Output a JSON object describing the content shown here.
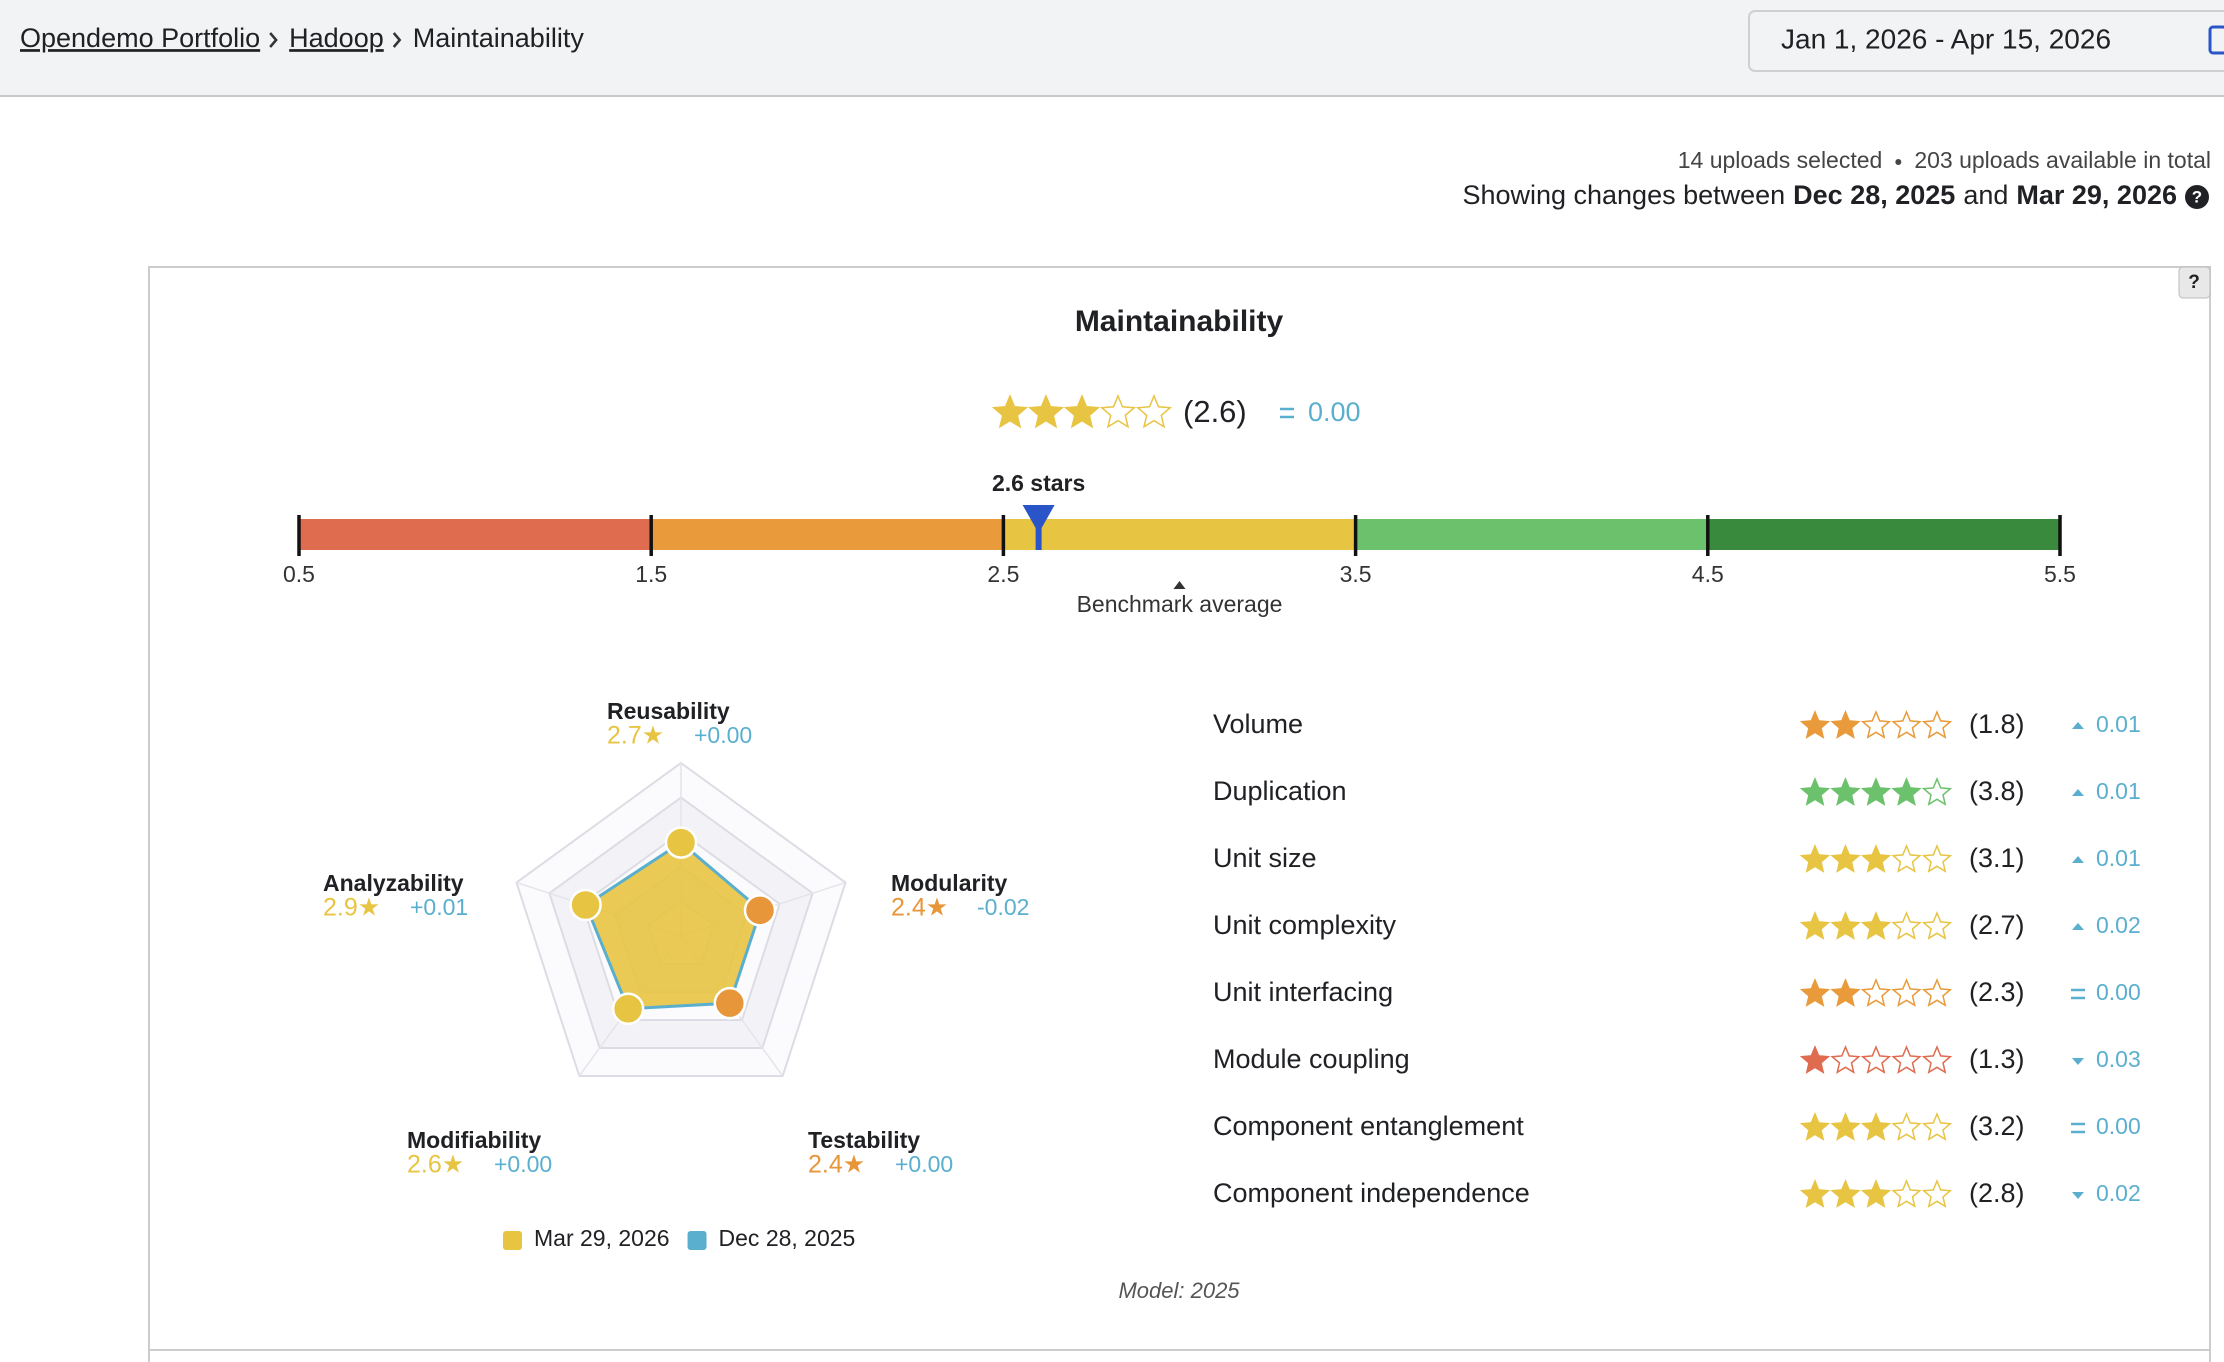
{
  "help": "?",
  "header": {
    "breadcrumb": [
      "Opendemo Portfolio",
      "Hadoop",
      "Maintainability"
    ],
    "date_range": "Jan 1, 2026 - Apr 15, 2026"
  },
  "summary": {
    "uploads_selected": "14 uploads selected",
    "uploads_total": "203 uploads available in total",
    "showing_prefix": "Showing changes between",
    "start": "Dec 28, 2025",
    "joiner": "and",
    "end": "Mar 29, 2026"
  },
  "panel": {
    "title": "Maintainability",
    "rating": 2.6,
    "rating_label": "(2.6)",
    "delta_label": "0.00",
    "trend": "equal",
    "scale": {
      "xlim": [
        0.5,
        5.5
      ],
      "xticks": [
        0.5,
        1.5,
        2.5,
        3.5,
        4.5,
        5.5
      ],
      "colors": [
        "#e06c50",
        "#e99a3a",
        "#e8c443",
        "#6cc26c",
        "#3a8a3e"
      ],
      "marker_label": "2.6 stars",
      "benchmark": 3.0,
      "benchmark_label": "Benchmark average"
    },
    "radar": {
      "axes": [
        "Reusability",
        "Modularity",
        "Testability",
        "Modifiability",
        "Analyzability"
      ],
      "rlim": [
        0,
        5
      ],
      "rticks": [
        1,
        2,
        3,
        4,
        5
      ],
      "deltas": [
        "+0.00",
        "-0.02",
        "+0.00",
        "+0.00",
        "+0.01"
      ],
      "series": [
        {
          "name": "Mar 29, 2026",
          "color": "#e8c443",
          "values": [
            2.7,
            2.4,
            2.4,
            2.6,
            2.9
          ],
          "value_labels": [
            "2.7★",
            "2.4★",
            "2.4★",
            "2.6★",
            "2.9★"
          ],
          "point_colors": [
            "#e8c443",
            "#e8963a",
            "#e8963a",
            "#e8c443",
            "#e8c443"
          ]
        },
        {
          "name": "Dec 28, 2025",
          "color": "#5aafcf",
          "values": [
            2.7,
            2.42,
            2.4,
            2.6,
            2.89
          ]
        }
      ]
    },
    "metrics": [
      {
        "name": "Volume",
        "rating": 1.8,
        "rating_label": "(1.8)",
        "delta_label": "0.01",
        "trend": "up"
      },
      {
        "name": "Duplication",
        "rating": 3.8,
        "rating_label": "(3.8)",
        "delta_label": "0.01",
        "trend": "up"
      },
      {
        "name": "Unit size",
        "rating": 3.1,
        "rating_label": "(3.1)",
        "delta_label": "0.01",
        "trend": "up"
      },
      {
        "name": "Unit complexity",
        "rating": 2.7,
        "rating_label": "(2.7)",
        "delta_label": "0.02",
        "trend": "up"
      },
      {
        "name": "Unit interfacing",
        "rating": 2.3,
        "rating_label": "(2.3)",
        "delta_label": "0.00",
        "trend": "equal"
      },
      {
        "name": "Module coupling",
        "rating": 1.3,
        "rating_label": "(1.3)",
        "delta_label": "0.03",
        "trend": "down"
      },
      {
        "name": "Component entanglement",
        "rating": 3.2,
        "rating_label": "(3.2)",
        "delta_label": "0.00",
        "trend": "equal"
      },
      {
        "name": "Component independence",
        "rating": 2.8,
        "rating_label": "(2.8)",
        "delta_label": "0.02",
        "trend": "down"
      }
    ],
    "model": "Model: 2025"
  }
}
